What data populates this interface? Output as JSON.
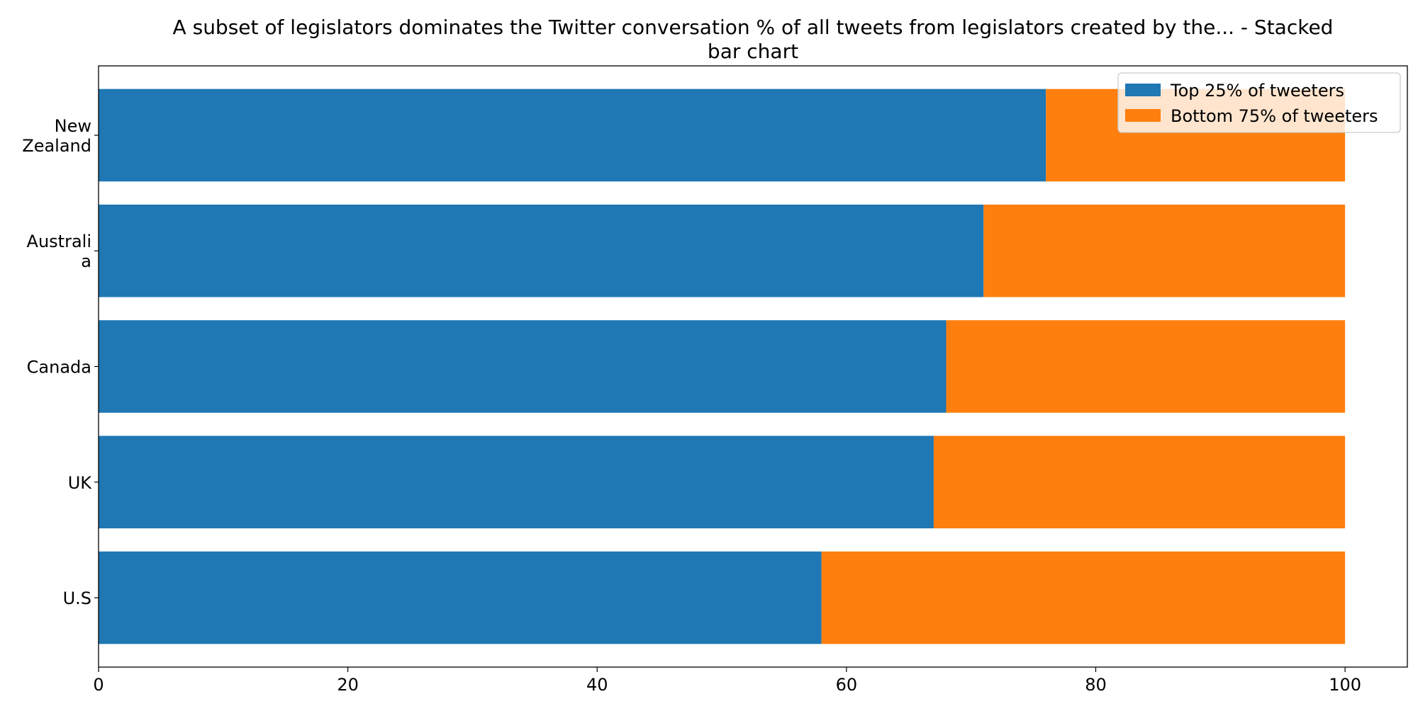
{
  "chart_data": {
    "type": "bar",
    "orientation": "horizontal",
    "stacked": true,
    "title_lines": [
      "A subset of legislators dominates the Twitter conversation % of all tweets from legislators created by the...  - Stacked",
      "bar chart"
    ],
    "categories": [
      [
        "U.S"
      ],
      [
        "UK"
      ],
      [
        "Canada"
      ],
      [
        "Australi",
        "a"
      ],
      [
        "New",
        "Zealand"
      ]
    ],
    "series": [
      {
        "name": "Top 25% of tweeters",
        "color": "#1f77b4",
        "values": [
          58,
          67,
          68,
          71,
          76
        ]
      },
      {
        "name": "Bottom 75% of tweeters",
        "color": "#ff7f0e",
        "values": [
          42,
          33,
          32,
          29,
          24
        ]
      }
    ],
    "xlim": [
      0,
      105
    ],
    "xticks": [
      0,
      20,
      40,
      60,
      80,
      100
    ],
    "grid": false,
    "legend_position": "top-right"
  }
}
